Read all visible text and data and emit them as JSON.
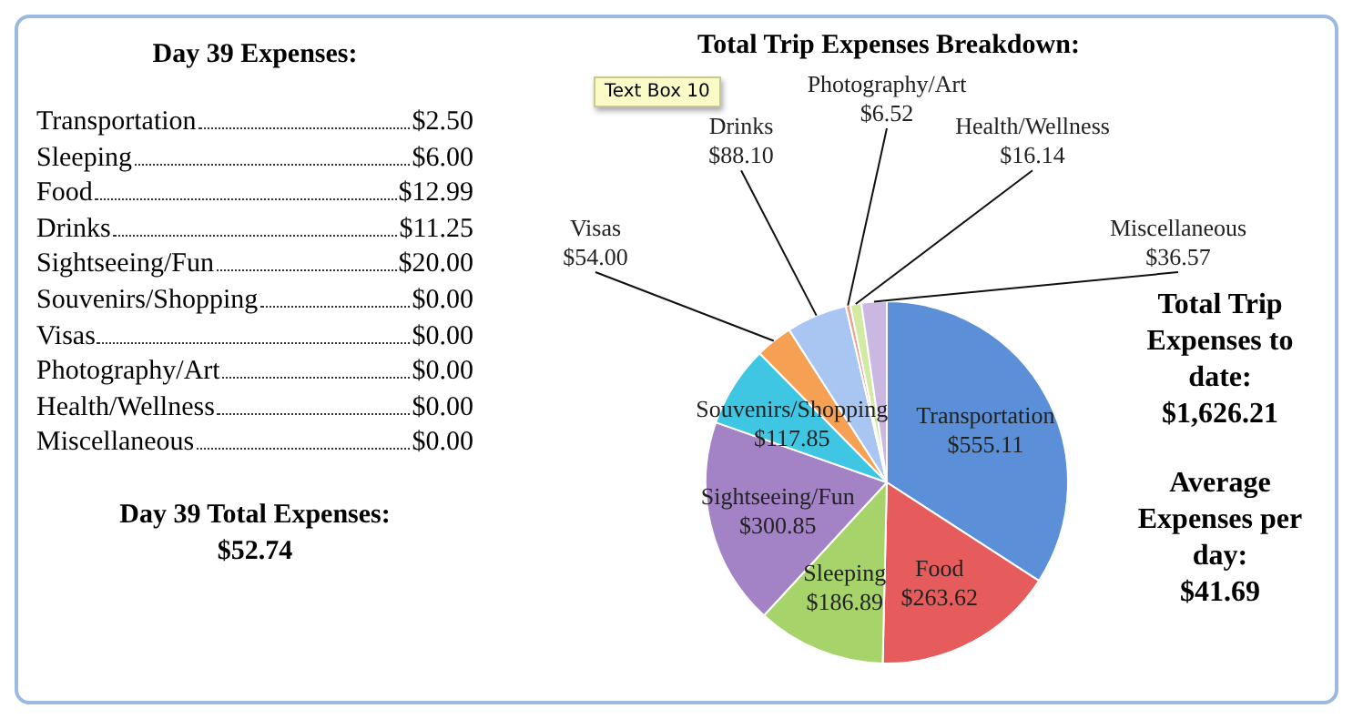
{
  "chart_data": [
    {
      "type": "other",
      "title": "Day 39  Expenses:",
      "categories": [
        "Transportation",
        "Sleeping",
        "Food",
        "Drinks",
        "Sightseeing/Fun",
        "Souvenirs/Shopping",
        "Visas",
        "Photography/Art",
        "Health/Wellness",
        "Miscellaneous"
      ],
      "value_labels": [
        "$2.50",
        "$6.00",
        "$12.99",
        "$11.25",
        "$20.00",
        "$0.00",
        "$0.00",
        "$0.00",
        "$0.00",
        "$0.00"
      ],
      "annotations": [
        "Day 39 Total Expenses:",
        "$52.74"
      ]
    },
    {
      "type": "pie",
      "title": "Total  Trip Expenses Breakdown:",
      "categories": [
        "Transportation",
        "Food",
        "Sleeping",
        "Sightseeing/Fun",
        "Souvenirs/Shopping",
        "Visas",
        "Drinks",
        "Photography/Art",
        "Health/Wellness",
        "Miscellaneous"
      ],
      "values": [
        555.11,
        263.62,
        186.89,
        300.85,
        117.85,
        54.0,
        88.1,
        6.52,
        16.14,
        36.57
      ],
      "value_labels": [
        "$555.11",
        "$263.62",
        "$186.89",
        "$300.85",
        "$117.85",
        "$54.00",
        "$88.10",
        "$6.52",
        "$16.14",
        "$36.57"
      ],
      "colors": [
        "#5b8fd8",
        "#e65c5c",
        "#a6d46a",
        "#a382c6",
        "#3ec6e2",
        "#f5a052",
        "#a9c6f2",
        "#f0a08e",
        "#d2eaa2",
        "#cab8e2"
      ],
      "annotations": [
        "Total Trip Expenses to date:",
        "$1,626.21",
        "Average Expenses per day:",
        "$41.69",
        "Text Box 10"
      ]
    }
  ]
}
